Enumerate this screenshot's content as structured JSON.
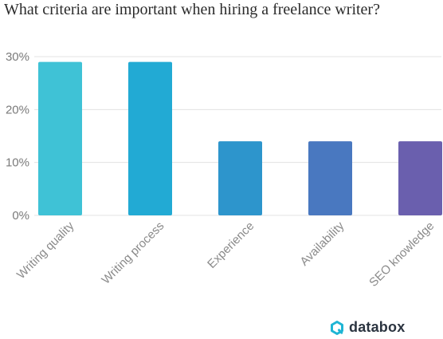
{
  "chart_data": {
    "type": "bar",
    "title": "What criteria are important when hiring a freelance writer?",
    "xlabel": "",
    "ylabel": "",
    "categories": [
      "Writing quality",
      "Writing process",
      "Experience",
      "Availability",
      "SEO knowledge"
    ],
    "values": [
      29,
      29,
      14,
      14,
      14
    ],
    "unit": "%",
    "ylim": [
      0,
      30
    ],
    "yticks": [
      "0%",
      "10%",
      "20%",
      "30%"
    ],
    "ytick_values": [
      0,
      10,
      20,
      30
    ],
    "grid": true,
    "bar_colors": [
      "#3fc2d6",
      "#22aad4",
      "#2d95cc",
      "#4978c0",
      "#6a5fae"
    ]
  },
  "brand": {
    "name": "databox",
    "icon": "databox-logo-icon",
    "color": "#1fb5d4"
  }
}
